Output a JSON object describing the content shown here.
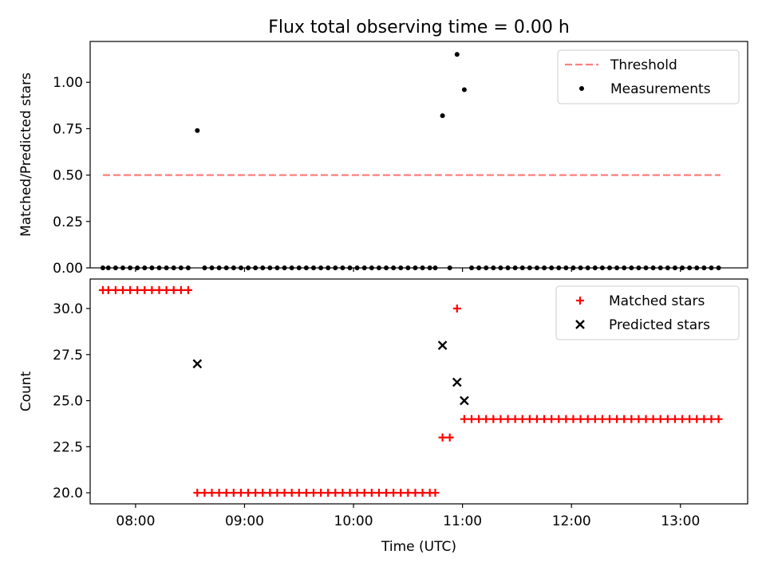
{
  "figure": {
    "title": "Flux total observing time = 0.00 h"
  },
  "chart_data": [
    {
      "type": "scatter",
      "ylabel": "Matched/Predicted stars",
      "xlabel": "",
      "xlim": [
        "07:35",
        "13:37"
      ],
      "ylim": [
        0,
        1.22
      ],
      "yticks": [
        0.0,
        0.25,
        0.5,
        0.75,
        1.0
      ],
      "ytick_labels": [
        "0.00",
        "0.25",
        "0.50",
        "0.75",
        "1.00"
      ],
      "xticks": [
        "08:00",
        "09:00",
        "10:00",
        "11:00",
        "12:00",
        "13:00"
      ],
      "legend_position": "top-right",
      "series": [
        {
          "name": "Threshold",
          "kind": "line",
          "style": "dashed",
          "color": "#ff7f7f",
          "points": [
            [
              "07:42",
              0.5
            ],
            [
              "13:22",
              0.5
            ]
          ]
        },
        {
          "name": "Measurements",
          "kind": "scatter",
          "marker": "dot",
          "color": "#000000",
          "points": [
            [
              "07:42",
              0
            ],
            [
              "07:45",
              0
            ],
            [
              "07:49",
              0
            ],
            [
              "07:53",
              0
            ],
            [
              "07:57",
              0
            ],
            [
              "08:01",
              0
            ],
            [
              "08:05",
              0
            ],
            [
              "08:09",
              0
            ],
            [
              "08:13",
              0
            ],
            [
              "08:17",
              0
            ],
            [
              "08:21",
              0
            ],
            [
              "08:25",
              0
            ],
            [
              "08:29",
              0
            ],
            [
              "08:34",
              0.74
            ],
            [
              "08:38",
              0
            ],
            [
              "08:42",
              0
            ],
            [
              "08:46",
              0
            ],
            [
              "08:50",
              0
            ],
            [
              "08:54",
              0
            ],
            [
              "08:58",
              0
            ],
            [
              "09:02",
              0
            ],
            [
              "09:06",
              0
            ],
            [
              "09:10",
              0
            ],
            [
              "09:14",
              0
            ],
            [
              "09:18",
              0
            ],
            [
              "09:22",
              0
            ],
            [
              "09:26",
              0
            ],
            [
              "09:30",
              0
            ],
            [
              "09:34",
              0
            ],
            [
              "09:38",
              0
            ],
            [
              "09:42",
              0
            ],
            [
              "09:46",
              0
            ],
            [
              "09:50",
              0
            ],
            [
              "09:54",
              0
            ],
            [
              "09:58",
              0
            ],
            [
              "10:02",
              0
            ],
            [
              "10:06",
              0
            ],
            [
              "10:10",
              0
            ],
            [
              "10:14",
              0
            ],
            [
              "10:18",
              0
            ],
            [
              "10:22",
              0
            ],
            [
              "10:26",
              0
            ],
            [
              "10:30",
              0
            ],
            [
              "10:34",
              0
            ],
            [
              "10:38",
              0
            ],
            [
              "10:42",
              0
            ],
            [
              "10:45",
              0
            ],
            [
              "10:49",
              0.82
            ],
            [
              "10:53",
              0
            ],
            [
              "10:57",
              1.15
            ],
            [
              "11:01",
              0.96
            ],
            [
              "11:05",
              0
            ],
            [
              "11:09",
              0
            ],
            [
              "11:13",
              0
            ],
            [
              "11:17",
              0
            ],
            [
              "11:21",
              0
            ],
            [
              "11:25",
              0
            ],
            [
              "11:29",
              0
            ],
            [
              "11:33",
              0
            ],
            [
              "11:37",
              0
            ],
            [
              "11:41",
              0
            ],
            [
              "11:45",
              0
            ],
            [
              "11:49",
              0
            ],
            [
              "11:53",
              0
            ],
            [
              "11:57",
              0
            ],
            [
              "12:01",
              0
            ],
            [
              "12:05",
              0
            ],
            [
              "12:09",
              0
            ],
            [
              "12:13",
              0
            ],
            [
              "12:17",
              0
            ],
            [
              "12:21",
              0
            ],
            [
              "12:25",
              0
            ],
            [
              "12:29",
              0
            ],
            [
              "12:33",
              0
            ],
            [
              "12:37",
              0
            ],
            [
              "12:41",
              0
            ],
            [
              "12:45",
              0
            ],
            [
              "12:49",
              0
            ],
            [
              "12:53",
              0
            ],
            [
              "12:57",
              0
            ],
            [
              "13:01",
              0
            ],
            [
              "13:05",
              0
            ],
            [
              "13:09",
              0
            ],
            [
              "13:13",
              0
            ],
            [
              "13:17",
              0
            ],
            [
              "13:21",
              0
            ]
          ]
        }
      ]
    },
    {
      "type": "scatter",
      "ylabel": "Count",
      "xlabel": "Time (UTC)",
      "xlim": [
        "07:35",
        "13:37"
      ],
      "ylim": [
        19.4,
        31.6
      ],
      "yticks": [
        20.0,
        22.5,
        25.0,
        27.5,
        30.0
      ],
      "ytick_labels": [
        "20.0",
        "22.5",
        "25.0",
        "27.5",
        "30.0"
      ],
      "xticks": [
        "08:00",
        "09:00",
        "10:00",
        "11:00",
        "12:00",
        "13:00"
      ],
      "xtick_labels": [
        "08:00",
        "09:00",
        "10:00",
        "11:00",
        "12:00",
        "13:00"
      ],
      "legend_position": "top-right",
      "series": [
        {
          "name": "Matched stars",
          "kind": "scatter",
          "marker": "plus",
          "color": "#ff0000",
          "points": [
            [
              "07:42",
              31
            ],
            [
              "07:45",
              31
            ],
            [
              "07:49",
              31
            ],
            [
              "07:53",
              31
            ],
            [
              "07:57",
              31
            ],
            [
              "08:01",
              31
            ],
            [
              "08:05",
              31
            ],
            [
              "08:09",
              31
            ],
            [
              "08:13",
              31
            ],
            [
              "08:17",
              31
            ],
            [
              "08:21",
              31
            ],
            [
              "08:25",
              31
            ],
            [
              "08:29",
              31
            ],
            [
              "08:34",
              20
            ],
            [
              "08:38",
              20
            ],
            [
              "08:42",
              20
            ],
            [
              "08:46",
              20
            ],
            [
              "08:50",
              20
            ],
            [
              "08:54",
              20
            ],
            [
              "08:58",
              20
            ],
            [
              "09:02",
              20
            ],
            [
              "09:06",
              20
            ],
            [
              "09:10",
              20
            ],
            [
              "09:14",
              20
            ],
            [
              "09:18",
              20
            ],
            [
              "09:22",
              20
            ],
            [
              "09:26",
              20
            ],
            [
              "09:30",
              20
            ],
            [
              "09:34",
              20
            ],
            [
              "09:38",
              20
            ],
            [
              "09:42",
              20
            ],
            [
              "09:46",
              20
            ],
            [
              "09:50",
              20
            ],
            [
              "09:54",
              20
            ],
            [
              "09:58",
              20
            ],
            [
              "10:02",
              20
            ],
            [
              "10:06",
              20
            ],
            [
              "10:10",
              20
            ],
            [
              "10:14",
              20
            ],
            [
              "10:18",
              20
            ],
            [
              "10:22",
              20
            ],
            [
              "10:26",
              20
            ],
            [
              "10:30",
              20
            ],
            [
              "10:34",
              20
            ],
            [
              "10:38",
              20
            ],
            [
              "10:42",
              20
            ],
            [
              "10:45",
              20
            ],
            [
              "10:49",
              23
            ],
            [
              "10:53",
              23
            ],
            [
              "10:57",
              30
            ],
            [
              "11:01",
              24
            ],
            [
              "11:05",
              24
            ],
            [
              "11:09",
              24
            ],
            [
              "11:13",
              24
            ],
            [
              "11:17",
              24
            ],
            [
              "11:21",
              24
            ],
            [
              "11:25",
              24
            ],
            [
              "11:29",
              24
            ],
            [
              "11:33",
              24
            ],
            [
              "11:37",
              24
            ],
            [
              "11:41",
              24
            ],
            [
              "11:45",
              24
            ],
            [
              "11:49",
              24
            ],
            [
              "11:53",
              24
            ],
            [
              "11:57",
              24
            ],
            [
              "12:01",
              24
            ],
            [
              "12:05",
              24
            ],
            [
              "12:09",
              24
            ],
            [
              "12:13",
              24
            ],
            [
              "12:17",
              24
            ],
            [
              "12:21",
              24
            ],
            [
              "12:25",
              24
            ],
            [
              "12:29",
              24
            ],
            [
              "12:33",
              24
            ],
            [
              "12:37",
              24
            ],
            [
              "12:41",
              24
            ],
            [
              "12:45",
              24
            ],
            [
              "12:49",
              24
            ],
            [
              "12:53",
              24
            ],
            [
              "12:57",
              24
            ],
            [
              "13:01",
              24
            ],
            [
              "13:05",
              24
            ],
            [
              "13:09",
              24
            ],
            [
              "13:13",
              24
            ],
            [
              "13:17",
              24
            ],
            [
              "13:21",
              24
            ]
          ]
        },
        {
          "name": "Predicted stars",
          "kind": "scatter",
          "marker": "x",
          "color": "#000000",
          "points": [
            [
              "08:34",
              27
            ],
            [
              "10:49",
              28
            ],
            [
              "10:57",
              26
            ],
            [
              "11:01",
              25
            ]
          ]
        }
      ]
    }
  ]
}
